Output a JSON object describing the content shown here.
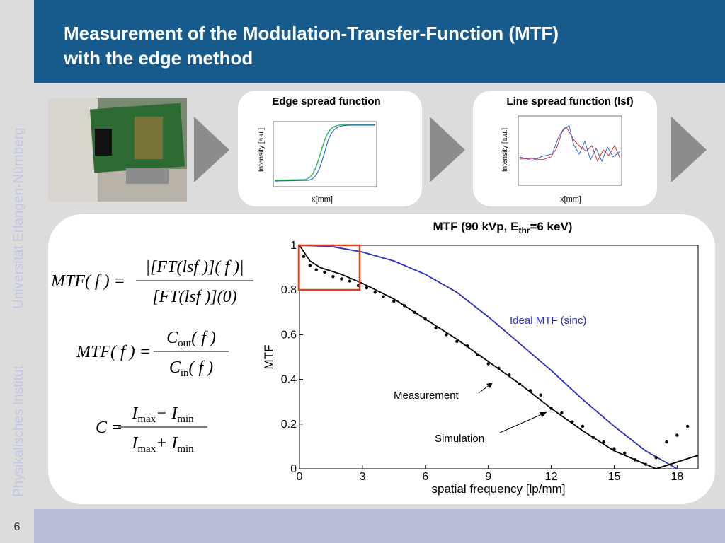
{
  "header": {
    "title_lines": [
      "Measurement of the Modulation-Transfer-Function (MTF)",
      "with the edge method"
    ]
  },
  "sidebar": {
    "institute": "Physikalisches Institut",
    "university": "Universität Erlangen-Nürnberg"
  },
  "page_number": "6",
  "panels": [
    {
      "title": "Edge spread function",
      "ylabel": "Intensity [a.u.]",
      "xlabel": "x[mm]"
    },
    {
      "title": "Line spread function (lsf)",
      "ylabel": "Intensity [a.u.]",
      "xlabel": "x[mm]"
    }
  ],
  "formulas": [
    {
      "lhs": "MTF( f ) =",
      "numerator": [
        "|[FT(lsf )]( f )|"
      ],
      "denominator": [
        "[FT(lsf )](0)"
      ]
    },
    {
      "lhs": "MTF( f ) =",
      "numerator": [
        "C",
        "out",
        "( f )"
      ],
      "denominator": [
        "C",
        "in",
        "( f )"
      ]
    },
    {
      "lhs": "C =",
      "numerator": [
        "I",
        "max",
        "− I",
        "min"
      ],
      "denominator": [
        "I",
        "max",
        "+ I",
        "min"
      ]
    }
  ],
  "chart_data": {
    "type": "line",
    "title": {
      "text": "MTF (90 kVp, E",
      "subscript": "thr",
      "suffix": "=6 keV)"
    },
    "x_label": "spatial frequency [lp/mm]",
    "y_label": "MTF",
    "xlim": [
      0,
      19
    ],
    "ylim": [
      0,
      1
    ],
    "xticks": [
      0,
      3,
      6,
      9,
      12,
      15,
      18
    ],
    "yticks": [
      0,
      0.2,
      0.4,
      0.6,
      0.8,
      1
    ],
    "series": [
      {
        "name": "Ideal MTF (sinc)",
        "color": "#2a2fc0",
        "mode": "line",
        "x": [
          0,
          1.5,
          3,
          4.5,
          6,
          7.5,
          9,
          10.5,
          12,
          13.5,
          15,
          16.5,
          18
        ],
        "values": [
          1,
          0.995,
          0.97,
          0.93,
          0.87,
          0.79,
          0.68,
          0.56,
          0.44,
          0.31,
          0.19,
          0.08,
          0
        ]
      },
      {
        "name": "Measurement",
        "color": "#000000",
        "mode": "markers",
        "x": [
          0.2,
          0.5,
          0.8,
          1.2,
          1.6,
          2.0,
          2.4,
          2.8,
          3.2,
          3.6,
          4.0,
          4.5,
          5.0,
          5.5,
          6.0,
          6.5,
          7.0,
          7.5,
          8.0,
          8.5,
          9.0,
          9.5,
          10.0,
          10.5,
          11.0,
          11.5,
          12.0,
          12.5,
          13.0,
          13.5,
          14.0,
          14.5,
          15.0,
          15.5,
          16.0,
          16.5,
          17.0,
          17.5,
          18.0,
          18.5
        ],
        "values": [
          0.95,
          0.91,
          0.89,
          0.88,
          0.86,
          0.85,
          0.84,
          0.82,
          0.81,
          0.79,
          0.77,
          0.75,
          0.73,
          0.7,
          0.67,
          0.63,
          0.6,
          0.57,
          0.55,
          0.51,
          0.47,
          0.45,
          0.42,
          0.38,
          0.35,
          0.33,
          0.27,
          0.25,
          0.21,
          0.19,
          0.14,
          0.12,
          0.09,
          0.07,
          0.04,
          0.02,
          0.05,
          0.12,
          0.15,
          0.19
        ]
      },
      {
        "name": "Simulation",
        "color": "#000000",
        "mode": "line",
        "x": [
          0,
          0.5,
          1,
          2,
          3,
          4.5,
          6,
          7.5,
          9,
          10.5,
          12,
          13.5,
          15,
          16.5,
          17,
          18,
          19
        ],
        "values": [
          1,
          0.93,
          0.9,
          0.87,
          0.83,
          0.76,
          0.67,
          0.58,
          0.48,
          0.38,
          0.27,
          0.17,
          0.08,
          0.02,
          0,
          0.03,
          0.06
        ]
      }
    ]
  }
}
